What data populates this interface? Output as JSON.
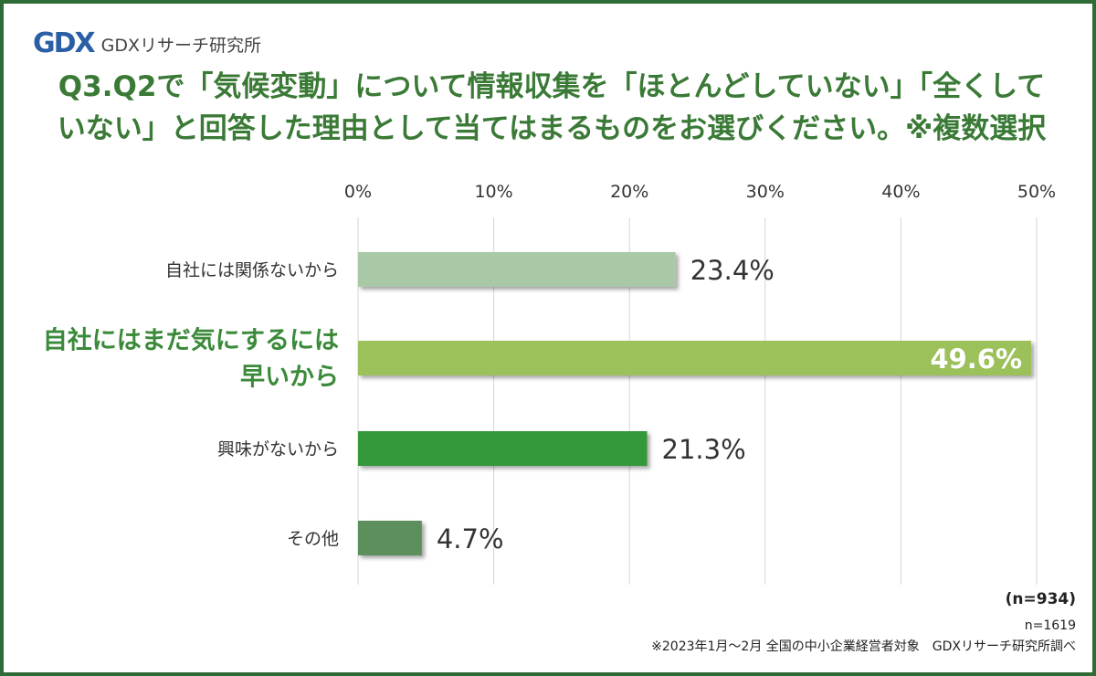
{
  "brand": {
    "logo_text": "GDX",
    "name": "GDXリサーチ研究所"
  },
  "title": {
    "line1": "Q3.Q2で「気候変動」について情報収集を「ほとんどしていない」「全くして",
    "line2": "いない」と回答した理由として当てはまるものをお選びください。※複数選択"
  },
  "chart_data": {
    "type": "bar",
    "orientation": "horizontal",
    "categories": [
      [
        "自社には関係ないから"
      ],
      [
        "自社にはまだ気にするには",
        "早いから"
      ],
      [
        "興味がないから"
      ],
      [
        "その他"
      ]
    ],
    "values": [
      23.4,
      49.6,
      21.3,
      4.7
    ],
    "value_labels": [
      "23.4%",
      "49.6%",
      "21.3%",
      "4.7%"
    ],
    "bar_colors": [
      "#a8c8a6",
      "#9cc05a",
      "#34993a",
      "#5b8f5c"
    ],
    "highlighted_index": 1,
    "xlim": [
      0,
      50
    ],
    "x_ticks": [
      0,
      10,
      20,
      30,
      40,
      50
    ],
    "x_tick_labels": [
      "0%",
      "10%",
      "20%",
      "30%",
      "40%",
      "50%"
    ],
    "grid": true
  },
  "footer": {
    "sample_main": "(n=934)",
    "sample_total": "n=1619",
    "note": "※2023年1月～2月 全国の中小企業経営者対象　GDXリサーチ研究所調べ"
  }
}
